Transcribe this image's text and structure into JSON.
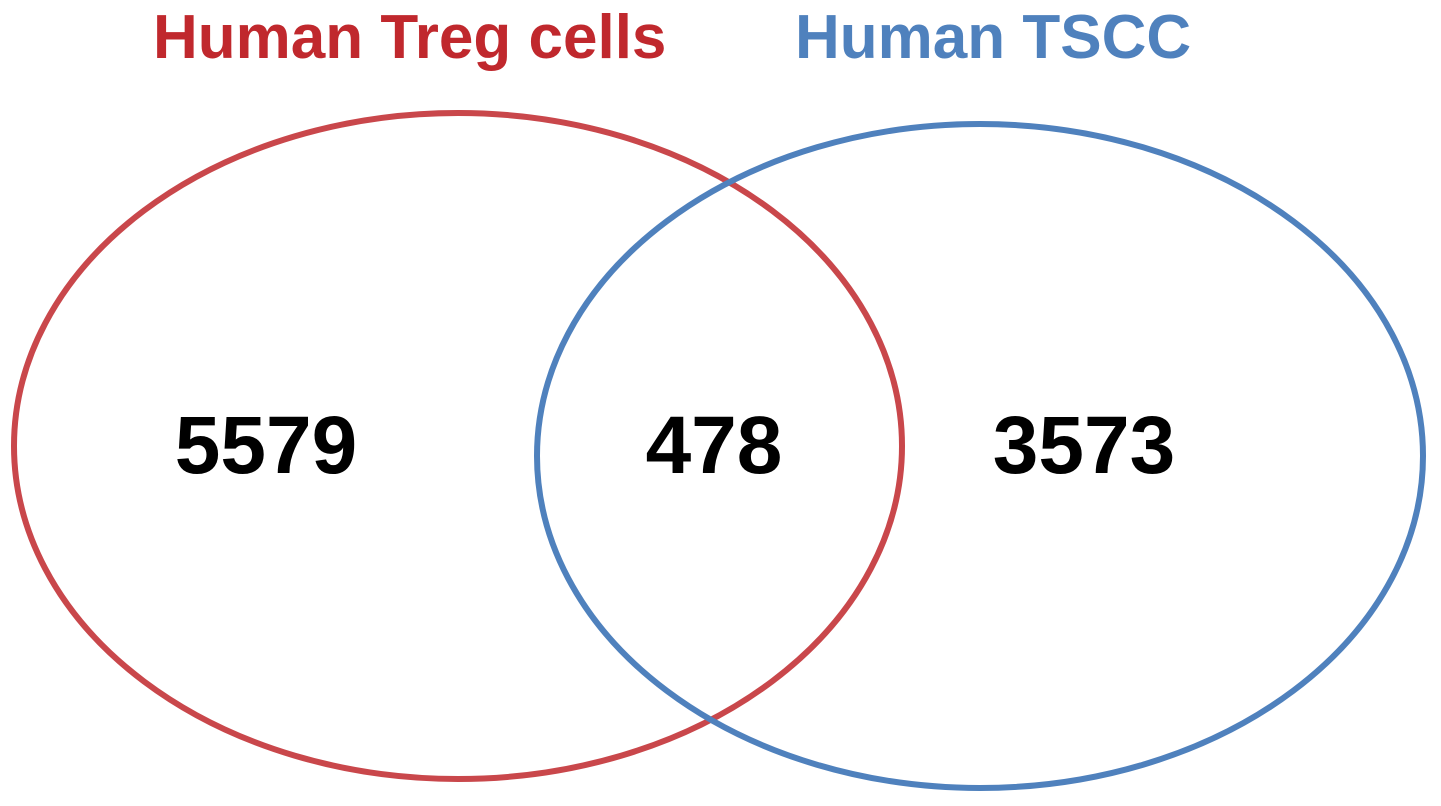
{
  "sets": [
    {
      "name": "Human Treg cells",
      "color": "#c0282d"
    },
    {
      "name": "Human TSCC",
      "color": "#4f81bd"
    }
  ],
  "counts": {
    "left_only": "5579",
    "intersection": "478",
    "right_only": "3573"
  },
  "ellipse_colors": {
    "left": "#c9474b",
    "right": "#4f81bd"
  }
}
